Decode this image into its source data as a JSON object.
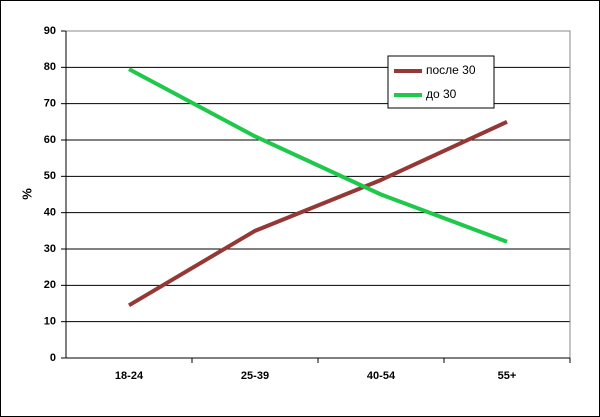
{
  "chart_data": {
    "type": "line",
    "y_label": "%",
    "categories": [
      "18-24",
      "25-39",
      "40-54",
      "55+"
    ],
    "series": [
      {
        "name": "после 30",
        "color": "#953735",
        "values": [
          14.5,
          35,
          49,
          65
        ]
      },
      {
        "name": "до 30",
        "color": "#1ec84a",
        "values": [
          79.5,
          61,
          45,
          32
        ]
      }
    ],
    "ylim": [
      0,
      90
    ],
    "yticks": [
      0,
      10,
      20,
      30,
      40,
      50,
      60,
      70,
      80,
      90
    ],
    "grid": true,
    "legend_position": "upper right"
  }
}
